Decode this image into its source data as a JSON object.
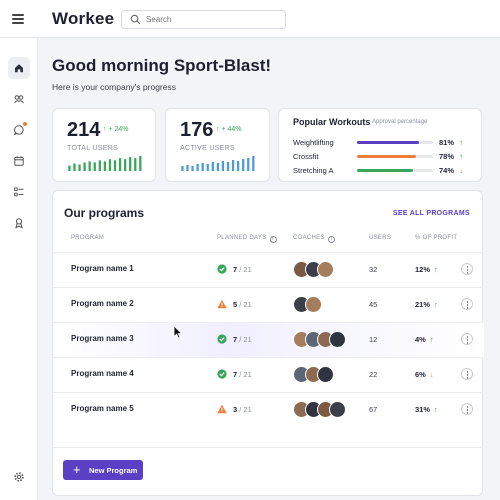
{
  "app": {
    "title": "Workee"
  },
  "search": {
    "placeholder": "Search"
  },
  "greeting": {
    "title": "Good morning Sport-Blast!",
    "subtitle": "Here is your company's progress"
  },
  "stats": [
    {
      "value": "214",
      "change": "+ 24%",
      "label": "TOTAL USERS",
      "color": "#3aa65c",
      "bars": [
        5,
        7,
        6,
        8,
        9,
        8,
        10,
        9,
        11,
        10,
        12,
        11,
        13,
        12,
        14
      ]
    },
    {
      "value": "176",
      "change": "+ 44%",
      "label": "ACTIVE USERS",
      "color": "#4a9bd6",
      "bars": [
        5,
        6,
        5,
        7,
        8,
        7,
        9,
        8,
        10,
        9,
        11,
        10,
        12,
        13,
        15
      ]
    }
  ],
  "popular": {
    "title": "Popular Workouts",
    "subtitle": "Approval percentage",
    "items": [
      {
        "name": "Weightlifting",
        "pct": "81%",
        "value": 81,
        "color": "#5b3fc5",
        "trend": "up"
      },
      {
        "name": "Crossfit",
        "pct": "78%",
        "value": 78,
        "color": "#f07c3a",
        "trend": "up"
      },
      {
        "name": "Stretching A",
        "pct": "74%",
        "value": 74,
        "color": "#3aa65c",
        "trend": "down"
      }
    ]
  },
  "programs": {
    "title": "Our programs",
    "see_all": "SEE ALL PROGRAMS",
    "headers": {
      "program": "PROGRAM",
      "planned": "PLANNED DAYS",
      "coaches": "COACHES",
      "users": "USERS",
      "profit": "% OF PROFIT"
    },
    "rows": [
      {
        "name": "Program name 1",
        "done": "7",
        "total": "/ 21",
        "status": "ok",
        "coaches": 3,
        "users": "32",
        "profit": "12%",
        "trend": "up"
      },
      {
        "name": "Program name 2",
        "done": "5",
        "total": "/ 21",
        "status": "warn",
        "coaches": 2,
        "users": "45",
        "profit": "21%",
        "trend": "up"
      },
      {
        "name": "Program name 3",
        "done": "7",
        "total": "/ 21",
        "status": "ok",
        "coaches": 4,
        "users": "12",
        "profit": "4%",
        "trend": "up"
      },
      {
        "name": "Program name 4",
        "done": "7",
        "total": "/ 21",
        "status": "ok",
        "coaches": 3,
        "users": "22",
        "profit": "6%",
        "trend": "down"
      },
      {
        "name": "Program name 5",
        "done": "3",
        "total": "/ 21",
        "status": "warn",
        "coaches": 4,
        "users": "67",
        "profit": "31%",
        "trend": "up"
      }
    ],
    "new_button": "New Program"
  },
  "icons": {
    "trend_up": "↑",
    "trend_down": "↓",
    "plus": "+",
    "info": "i"
  }
}
